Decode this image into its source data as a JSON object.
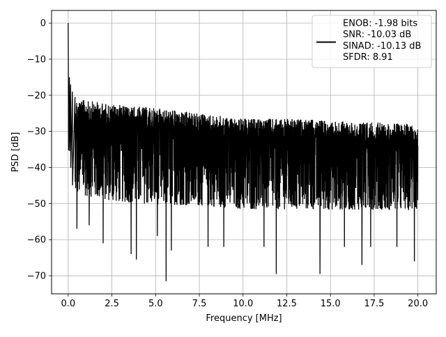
{
  "chart_data": {
    "type": "line",
    "title": "",
    "xlabel": "Frequency [MHz]",
    "ylabel": "PSD [dB]",
    "xlim": [
      -0.95,
      21.05
    ],
    "ylim": [
      -75,
      3.5
    ],
    "xticks": [
      0.0,
      2.5,
      5.0,
      7.5,
      10.0,
      12.5,
      15.0,
      17.5,
      20.0
    ],
    "xtick_labels": [
      "0.0",
      "2.5",
      "5.0",
      "7.5",
      "10.0",
      "12.5",
      "15.0",
      "17.5",
      "20.0"
    ],
    "yticks": [
      0,
      -10,
      -20,
      -30,
      -40,
      -50,
      -60,
      -70
    ],
    "ytick_labels": [
      "0",
      "−10",
      "−20",
      "−30",
      "−40",
      "−50",
      "−60",
      "−70"
    ],
    "grid": true,
    "legend_position": "top-right",
    "legend_lines": [
      "ENOB: -1.98 bits",
      "SNR: -10.03 dB",
      "SINAD: -10.13 dB",
      "SFDR: 8.91"
    ],
    "series": [
      {
        "color": "#000000",
        "x_range": [
          0,
          20
        ],
        "peak": {
          "x": 0.0,
          "y": 0
        },
        "rolloff": [
          {
            "x": 0.02,
            "y": -12
          },
          {
            "x": 0.08,
            "y": -15
          },
          {
            "x": 0.15,
            "y": -17
          },
          {
            "x": 0.25,
            "y": -19
          },
          {
            "x": 0.4,
            "y": -20.5
          }
        ],
        "upper_envelope": [
          {
            "x": 0.5,
            "y": -21
          },
          {
            "x": 2.5,
            "y": -22.5
          },
          {
            "x": 5.0,
            "y": -23.5
          },
          {
            "x": 7.5,
            "y": -25
          },
          {
            "x": 10.0,
            "y": -26.5
          },
          {
            "x": 12.5,
            "y": -26.5
          },
          {
            "x": 15.0,
            "y": -27
          },
          {
            "x": 17.5,
            "y": -27.5
          },
          {
            "x": 20.0,
            "y": -28
          }
        ],
        "lower_envelope": [
          {
            "x": 0.5,
            "y": -52
          },
          {
            "x": 2.5,
            "y": -54
          },
          {
            "x": 5.0,
            "y": -55
          },
          {
            "x": 7.5,
            "y": -55
          },
          {
            "x": 10.0,
            "y": -56
          },
          {
            "x": 12.5,
            "y": -56
          },
          {
            "x": 15.0,
            "y": -56
          },
          {
            "x": 17.5,
            "y": -56
          },
          {
            "x": 20.0,
            "y": -56
          }
        ],
        "deep_nulls": [
          {
            "x": 0.5,
            "y": -57
          },
          {
            "x": 1.2,
            "y": -56
          },
          {
            "x": 2.0,
            "y": -61
          },
          {
            "x": 3.6,
            "y": -64
          },
          {
            "x": 3.9,
            "y": -65.5
          },
          {
            "x": 5.1,
            "y": -59
          },
          {
            "x": 5.6,
            "y": -71.5
          },
          {
            "x": 5.9,
            "y": -63
          },
          {
            "x": 8.0,
            "y": -62
          },
          {
            "x": 8.9,
            "y": -62
          },
          {
            "x": 11.2,
            "y": -62
          },
          {
            "x": 11.9,
            "y": -69.5
          },
          {
            "x": 14.4,
            "y": -69.5
          },
          {
            "x": 15.8,
            "y": -62
          },
          {
            "x": 16.8,
            "y": -67
          },
          {
            "x": 17.3,
            "y": -62
          },
          {
            "x": 18.8,
            "y": -62
          },
          {
            "x": 19.8,
            "y": -66
          }
        ]
      }
    ]
  }
}
